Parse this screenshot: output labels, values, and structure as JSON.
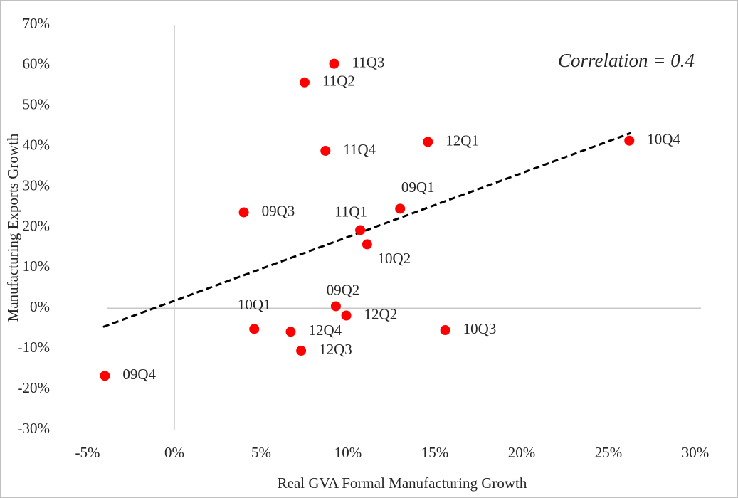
{
  "chart_data": {
    "type": "scatter",
    "annotation": "Correlation = 0.4",
    "x_label": "Real GVA Formal Manufacturing Growth",
    "y_label": "Manufacturing Exports Growth",
    "color": "#ff0000",
    "labels": [
      "09Q1",
      "09Q2",
      "09Q3",
      "09Q4",
      "10Q1",
      "10Q2",
      "10Q3",
      "10Q4",
      "11Q1",
      "11Q2",
      "11Q3",
      "11Q4",
      "12Q1",
      "12Q2",
      "12Q3",
      "12Q4"
    ],
    "x": [
      13.0,
      9.3,
      4.0,
      -4.0,
      4.6,
      11.1,
      15.6,
      26.2,
      10.7,
      7.5,
      9.2,
      8.7,
      14.6,
      9.9,
      7.3,
      6.7
    ],
    "y": [
      24.6,
      0.5,
      23.7,
      -16.7,
      -5.1,
      15.8,
      -5.4,
      41.4,
      19.3,
      55.8,
      60.4,
      38.9,
      41.1,
      -1.8,
      -10.5,
      -5.8
    ],
    "trendline": {
      "x": [
        -4.1,
        26.3
      ],
      "y": [
        -4.6,
        43.3
      ]
    },
    "xlim": [
      -5,
      30
    ],
    "ylim": [
      -30,
      70
    ],
    "xticks": [
      {
        "value": -5,
        "label": "-5%"
      },
      {
        "value": 0,
        "label": "0%"
      },
      {
        "value": 5,
        "label": "5%"
      },
      {
        "value": 10,
        "label": "10%"
      },
      {
        "value": 15,
        "label": "15%"
      },
      {
        "value": 20,
        "label": "20%"
      },
      {
        "value": 25,
        "label": "25%"
      },
      {
        "value": 30,
        "label": "30%"
      }
    ],
    "yticks": [
      {
        "value": -30,
        "label": "-30%"
      },
      {
        "value": -20,
        "label": "-20%"
      },
      {
        "value": -10,
        "label": "-10%"
      },
      {
        "value": 0,
        "label": "0%"
      },
      {
        "value": 10,
        "label": "10%"
      },
      {
        "value": 20,
        "label": "20%"
      },
      {
        "value": 30,
        "label": "30%"
      },
      {
        "value": 40,
        "label": "40%"
      },
      {
        "value": 50,
        "label": "50%"
      },
      {
        "value": 60,
        "label": "60%"
      },
      {
        "value": 70,
        "label": "70%"
      }
    ]
  }
}
